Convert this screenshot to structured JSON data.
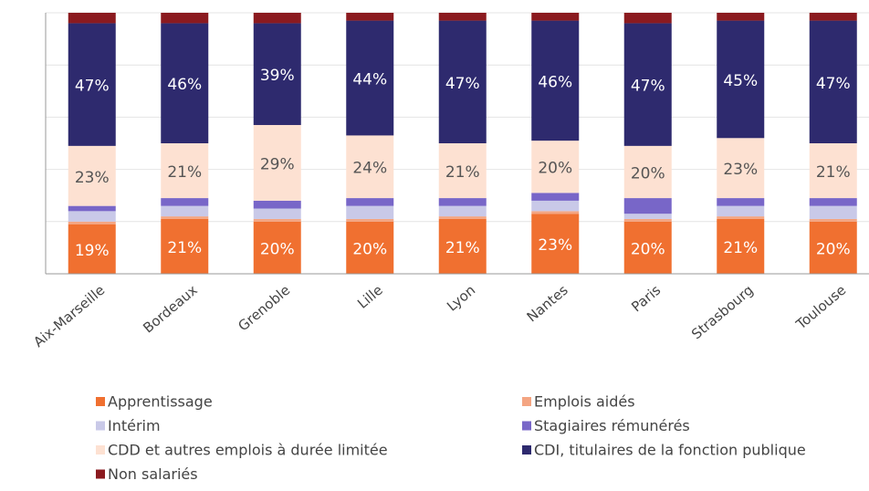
{
  "chart_data": {
    "type": "stacked_bar",
    "categories": [
      "Aix-Marseille",
      "Bordeaux",
      "Grenoble",
      "Lille",
      "Lyon",
      "Nantes",
      "Paris",
      "Strasbourg",
      "Toulouse"
    ],
    "series": [
      {
        "name": "Apprentissage",
        "color": "#f07030",
        "values": [
          19,
          21,
          20,
          20,
          21,
          23,
          20,
          21,
          20
        ],
        "value_labels": [
          "19%",
          "21%",
          "20%",
          "20%",
          "21%",
          "23%",
          "20%",
          "21%",
          "20%"
        ]
      },
      {
        "name": "Emplois aidés",
        "color": "#f4a582",
        "values": [
          1,
          1,
          1,
          1,
          1,
          1,
          1,
          1,
          1
        ]
      },
      {
        "name": "Intérim",
        "color": "#c9c9e8",
        "values": [
          4,
          4,
          4,
          5,
          4,
          4,
          2,
          4,
          5
        ]
      },
      {
        "name": "Stagiaires rémunérés",
        "color": "#7866c8",
        "values": [
          2,
          3,
          3,
          3,
          3,
          3,
          6,
          3,
          3
        ]
      },
      {
        "name": "CDD et autres emplois à durée limitée",
        "color": "#fde1d2",
        "values": [
          23,
          21,
          29,
          24,
          21,
          20,
          20,
          23,
          21
        ],
        "value_labels": [
          "23%",
          "21%",
          "29%",
          "24%",
          "21%",
          "20%",
          "20%",
          "23%",
          "21%"
        ]
      },
      {
        "name": "CDI, titulaires de la fonction publique",
        "color": "#2e2a6e",
        "values": [
          47,
          46,
          39,
          44,
          47,
          46,
          47,
          45,
          47
        ],
        "value_labels": [
          "47%",
          "46%",
          "39%",
          "44%",
          "47%",
          "46%",
          "47%",
          "45%",
          "47%"
        ]
      },
      {
        "name": "Non salariés",
        "color": "#8b1a1f",
        "values": [
          4,
          4,
          4,
          3,
          3,
          3,
          4,
          3,
          3
        ]
      }
    ],
    "ylim": [
      0,
      100
    ],
    "yticks": [
      0,
      20,
      40,
      60,
      80,
      100
    ],
    "grid": true
  }
}
